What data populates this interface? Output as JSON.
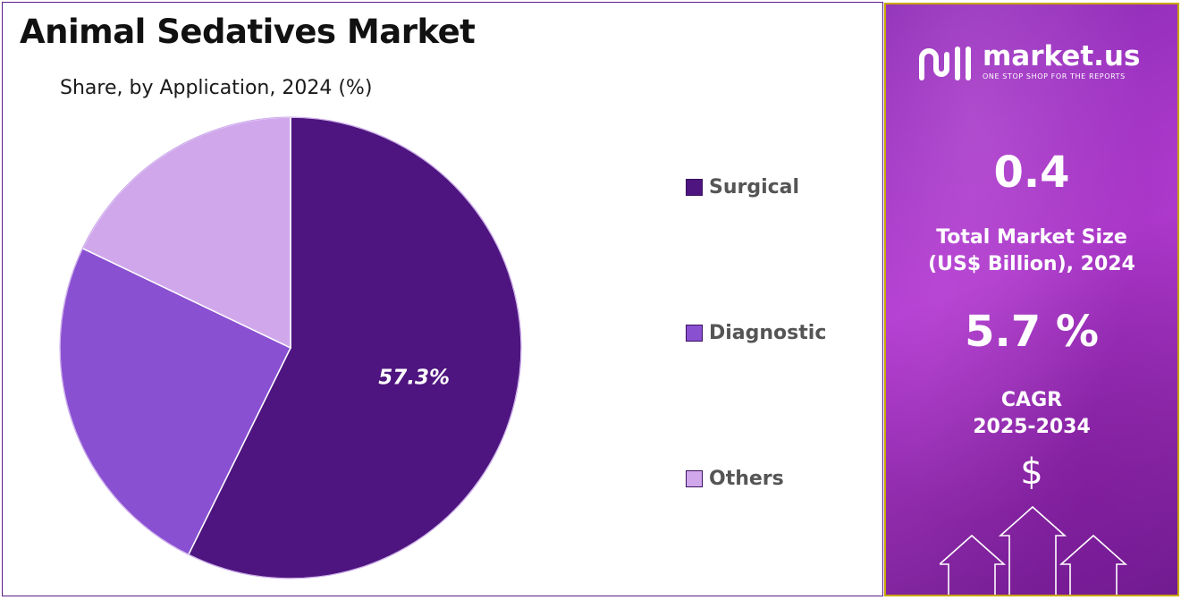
{
  "title": "Animal Sedatives Market",
  "subtitle": "Share, by Application, 2024 (%)",
  "chart_data": {
    "type": "pie",
    "categories": [
      "Surgical",
      "Diagnostic",
      "Others"
    ],
    "values": [
      57.3,
      24.8,
      17.9
    ],
    "data_labels": [
      "57.3%",
      "",
      ""
    ],
    "colors": [
      "#4e1580",
      "#8a50d2",
      "#d1a7ec"
    ],
    "legend_position": "right"
  },
  "legend": {
    "items": [
      {
        "label": "Surgical",
        "color": "#4e1580"
      },
      {
        "label": "Diagnostic",
        "color": "#8a50d2"
      },
      {
        "label": "Others",
        "color": "#d1a7ec"
      }
    ]
  },
  "sidebar": {
    "brand_name": "market.us",
    "brand_tagline": "ONE STOP SHOP FOR THE REPORTS",
    "market_size_value": "0.4",
    "market_size_label_line1": "Total Market Size",
    "market_size_label_line2": "(US$ Billion), 2024",
    "cagr_value": "5.7 %",
    "cagr_label_line1": "CAGR",
    "cagr_label_line2": "2025-2034",
    "dollar_symbol": "$",
    "logo_icon": "market-us-logo-icon",
    "arrows_icon": "growth-arrows-icon"
  }
}
